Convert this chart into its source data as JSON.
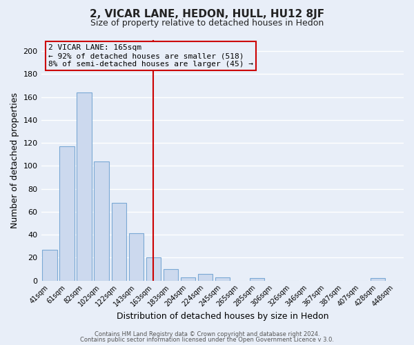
{
  "title": "2, VICAR LANE, HEDON, HULL, HU12 8JF",
  "subtitle": "Size of property relative to detached houses in Hedon",
  "xlabel": "Distribution of detached houses by size in Hedon",
  "ylabel": "Number of detached properties",
  "bar_labels": [
    "41sqm",
    "61sqm",
    "82sqm",
    "102sqm",
    "122sqm",
    "143sqm",
    "163sqm",
    "183sqm",
    "204sqm",
    "224sqm",
    "245sqm",
    "265sqm",
    "285sqm",
    "306sqm",
    "326sqm",
    "346sqm",
    "367sqm",
    "387sqm",
    "407sqm",
    "428sqm",
    "448sqm"
  ],
  "bar_values": [
    27,
    117,
    164,
    104,
    68,
    41,
    20,
    10,
    3,
    6,
    3,
    0,
    2,
    0,
    0,
    0,
    0,
    0,
    0,
    2,
    0
  ],
  "bar_color": "#ccd9ee",
  "bar_edge_color": "#7aa8d4",
  "vline_x_index": 6,
  "vline_color": "#cc0000",
  "annotation_title": "2 VICAR LANE: 165sqm",
  "annotation_line1": "← 92% of detached houses are smaller (518)",
  "annotation_line2": "8% of semi-detached houses are larger (45) →",
  "annotation_box_edge": "#cc0000",
  "ylim": [
    0,
    210
  ],
  "yticks": [
    0,
    20,
    40,
    60,
    80,
    100,
    120,
    140,
    160,
    180,
    200
  ],
  "footer1": "Contains HM Land Registry data © Crown copyright and database right 2024.",
  "footer2": "Contains public sector information licensed under the Open Government Licence v 3.0.",
  "background_color": "#e8eef8",
  "grid_color": "#d0d8e8",
  "title_fontsize": 11,
  "subtitle_fontsize": 9
}
